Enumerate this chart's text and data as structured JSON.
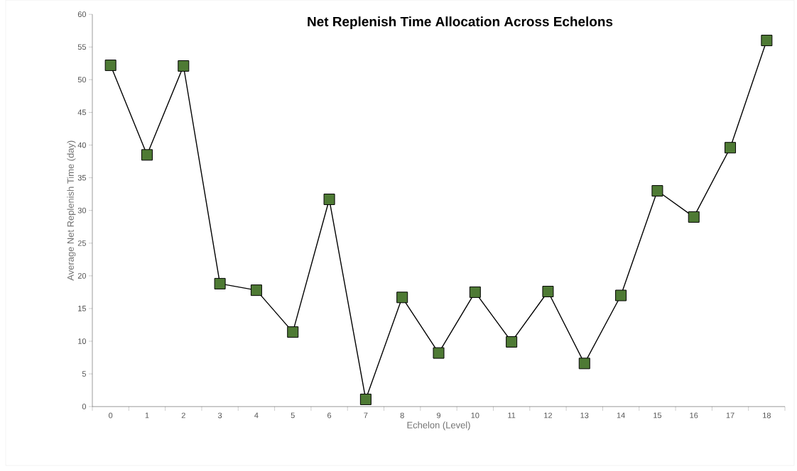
{
  "chart_data": {
    "type": "line",
    "title": "Net Replenish Time Allocation Across Echelons",
    "xlabel": "Echelon (Level)",
    "ylabel": "Average  Net Replenish Time (day)",
    "categories": [
      "0",
      "1",
      "2",
      "3",
      "4",
      "5",
      "6",
      "7",
      "8",
      "9",
      "10",
      "11",
      "12",
      "13",
      "14",
      "15",
      "16",
      "17",
      "18"
    ],
    "series": [
      {
        "color": "#4e7a34",
        "values": [
          52.2,
          38.5,
          52.1,
          18.8,
          17.8,
          11.4,
          31.7,
          1.1,
          16.7,
          8.2,
          17.5,
          9.9,
          17.6,
          6.6,
          17.0,
          33.0,
          29.0,
          39.6,
          56.0
        ]
      }
    ],
    "ylim": [
      0,
      60
    ],
    "yticks": [
      0,
      5,
      10,
      15,
      20,
      25,
      30,
      35,
      40,
      45,
      50,
      55,
      60
    ],
    "marker": "square",
    "line_style": "solid"
  }
}
